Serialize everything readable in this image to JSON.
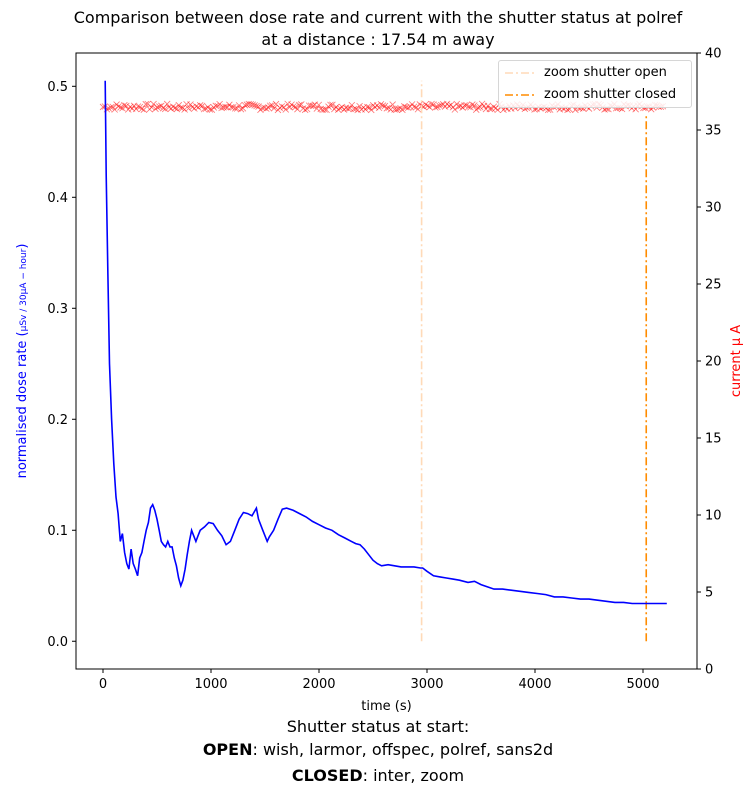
{
  "chart_data": {
    "type": "line",
    "title": "Comparison between dose rate and current with the shutter status at polref",
    "subtitle": "at a distance : 17.54 m away",
    "xlabel": "time (s)",
    "ylabel_left": "normalised dose rate (",
    "ylabel_left_unit": "μSv / 30μA − hour",
    "ylabel_left_close": ")",
    "ylabel_right": "current μ A",
    "xlim": [
      -250,
      5500
    ],
    "ylim_left": [
      -0.025,
      0.53
    ],
    "ylim_right": [
      0,
      40
    ],
    "x_ticks": [
      0,
      1000,
      2000,
      3000,
      4000,
      5000
    ],
    "x_tick_labels": [
      "0",
      "1000",
      "2000",
      "3000",
      "4000",
      "5000"
    ],
    "y_left_ticks": [
      0.0,
      0.1,
      0.2,
      0.3,
      0.4,
      0.5
    ],
    "y_left_tick_labels": [
      "0.0",
      "0.1",
      "0.2",
      "0.3",
      "0.4",
      "0.5"
    ],
    "y_right_ticks": [
      0,
      5,
      10,
      15,
      20,
      25,
      30,
      35,
      40
    ],
    "y_right_tick_labels": [
      "0",
      "5",
      "10",
      "15",
      "20",
      "25",
      "30",
      "35",
      "40"
    ],
    "series": [
      {
        "name": "",
        "axis": "left",
        "color": "#0000ff",
        "style": "solid",
        "points": [
          [
            20,
            0.505
          ],
          [
            30,
            0.42
          ],
          [
            45,
            0.33
          ],
          [
            60,
            0.25
          ],
          [
            80,
            0.2
          ],
          [
            100,
            0.16
          ],
          [
            120,
            0.13
          ],
          [
            140,
            0.115
          ],
          [
            160,
            0.09
          ],
          [
            180,
            0.097
          ],
          [
            200,
            0.08
          ],
          [
            220,
            0.07
          ],
          [
            240,
            0.065
          ],
          [
            260,
            0.083
          ],
          [
            280,
            0.07
          ],
          [
            300,
            0.065
          ],
          [
            320,
            0.059
          ],
          [
            340,
            0.075
          ],
          [
            360,
            0.08
          ],
          [
            380,
            0.09
          ],
          [
            400,
            0.1
          ],
          [
            420,
            0.107
          ],
          [
            440,
            0.12
          ],
          [
            460,
            0.123
          ],
          [
            480,
            0.118
          ],
          [
            500,
            0.11
          ],
          [
            520,
            0.1
          ],
          [
            540,
            0.09
          ],
          [
            560,
            0.087
          ],
          [
            580,
            0.085
          ],
          [
            600,
            0.09
          ],
          [
            620,
            0.085
          ],
          [
            640,
            0.085
          ],
          [
            660,
            0.075
          ],
          [
            680,
            0.068
          ],
          [
            700,
            0.057
          ],
          [
            720,
            0.05
          ],
          [
            740,
            0.055
          ],
          [
            760,
            0.065
          ],
          [
            780,
            0.078
          ],
          [
            800,
            0.09
          ],
          [
            820,
            0.1
          ],
          [
            840,
            0.095
          ],
          [
            860,
            0.09
          ],
          [
            880,
            0.095
          ],
          [
            900,
            0.1
          ],
          [
            940,
            0.103
          ],
          [
            980,
            0.107
          ],
          [
            1020,
            0.106
          ],
          [
            1060,
            0.1
          ],
          [
            1100,
            0.095
          ],
          [
            1140,
            0.087
          ],
          [
            1180,
            0.09
          ],
          [
            1220,
            0.1
          ],
          [
            1260,
            0.11
          ],
          [
            1300,
            0.116
          ],
          [
            1340,
            0.115
          ],
          [
            1380,
            0.113
          ],
          [
            1420,
            0.12
          ],
          [
            1440,
            0.11
          ],
          [
            1480,
            0.1
          ],
          [
            1520,
            0.09
          ],
          [
            1540,
            0.094
          ],
          [
            1580,
            0.1
          ],
          [
            1620,
            0.11
          ],
          [
            1660,
            0.119
          ],
          [
            1700,
            0.12
          ],
          [
            1760,
            0.118
          ],
          [
            1820,
            0.115
          ],
          [
            1880,
            0.112
          ],
          [
            1940,
            0.108
          ],
          [
            2000,
            0.105
          ],
          [
            2060,
            0.102
          ],
          [
            2120,
            0.1
          ],
          [
            2180,
            0.096
          ],
          [
            2240,
            0.093
          ],
          [
            2300,
            0.09
          ],
          [
            2340,
            0.088
          ],
          [
            2380,
            0.087
          ],
          [
            2420,
            0.083
          ],
          [
            2460,
            0.078
          ],
          [
            2500,
            0.073
          ],
          [
            2540,
            0.07
          ],
          [
            2580,
            0.068
          ],
          [
            2640,
            0.069
          ],
          [
            2700,
            0.068
          ],
          [
            2760,
            0.067
          ],
          [
            2820,
            0.067
          ],
          [
            2880,
            0.067
          ],
          [
            2940,
            0.066
          ],
          [
            2960,
            0.066
          ],
          [
            3000,
            0.063
          ],
          [
            3060,
            0.059
          ],
          [
            3120,
            0.058
          ],
          [
            3180,
            0.057
          ],
          [
            3240,
            0.056
          ],
          [
            3300,
            0.055
          ],
          [
            3380,
            0.053
          ],
          [
            3440,
            0.054
          ],
          [
            3500,
            0.051
          ],
          [
            3560,
            0.049
          ],
          [
            3620,
            0.047
          ],
          [
            3700,
            0.047
          ],
          [
            3780,
            0.046
          ],
          [
            3860,
            0.045
          ],
          [
            3940,
            0.044
          ],
          [
            4020,
            0.043
          ],
          [
            4100,
            0.042
          ],
          [
            4180,
            0.04
          ],
          [
            4260,
            0.04
          ],
          [
            4340,
            0.039
          ],
          [
            4420,
            0.038
          ],
          [
            4500,
            0.038
          ],
          [
            4580,
            0.037
          ],
          [
            4660,
            0.036
          ],
          [
            4740,
            0.035
          ],
          [
            4820,
            0.035
          ],
          [
            4900,
            0.034
          ],
          [
            4980,
            0.034
          ],
          [
            5060,
            0.034
          ],
          [
            5140,
            0.034
          ],
          [
            5220,
            0.034
          ]
        ]
      },
      {
        "name": "",
        "axis": "right",
        "color": "#ff0000",
        "style": "x-markers",
        "x_start": 0,
        "x_end": 5200,
        "mean": 36.5,
        "spread": 0.2
      },
      {
        "name": "zoom shutter open",
        "axis": "left",
        "color": "#ffdab8",
        "style": "dash-dot",
        "x": 2950,
        "y_range": [
          0.0,
          0.505
        ]
      },
      {
        "name": "zoom shutter closed",
        "axis": "left",
        "color": "#ff8c00",
        "style": "dash-dot",
        "x": 5030,
        "y_range": [
          0.0,
          0.475
        ]
      }
    ],
    "legend_position": "top-right"
  },
  "caption": {
    "heading": "Shutter status at start:",
    "open_label": "OPEN",
    "open_list": ":  wish, larmor, offspec, polref, sans2d",
    "closed_label": "CLOSED",
    "closed_list": ":  inter, zoom"
  }
}
